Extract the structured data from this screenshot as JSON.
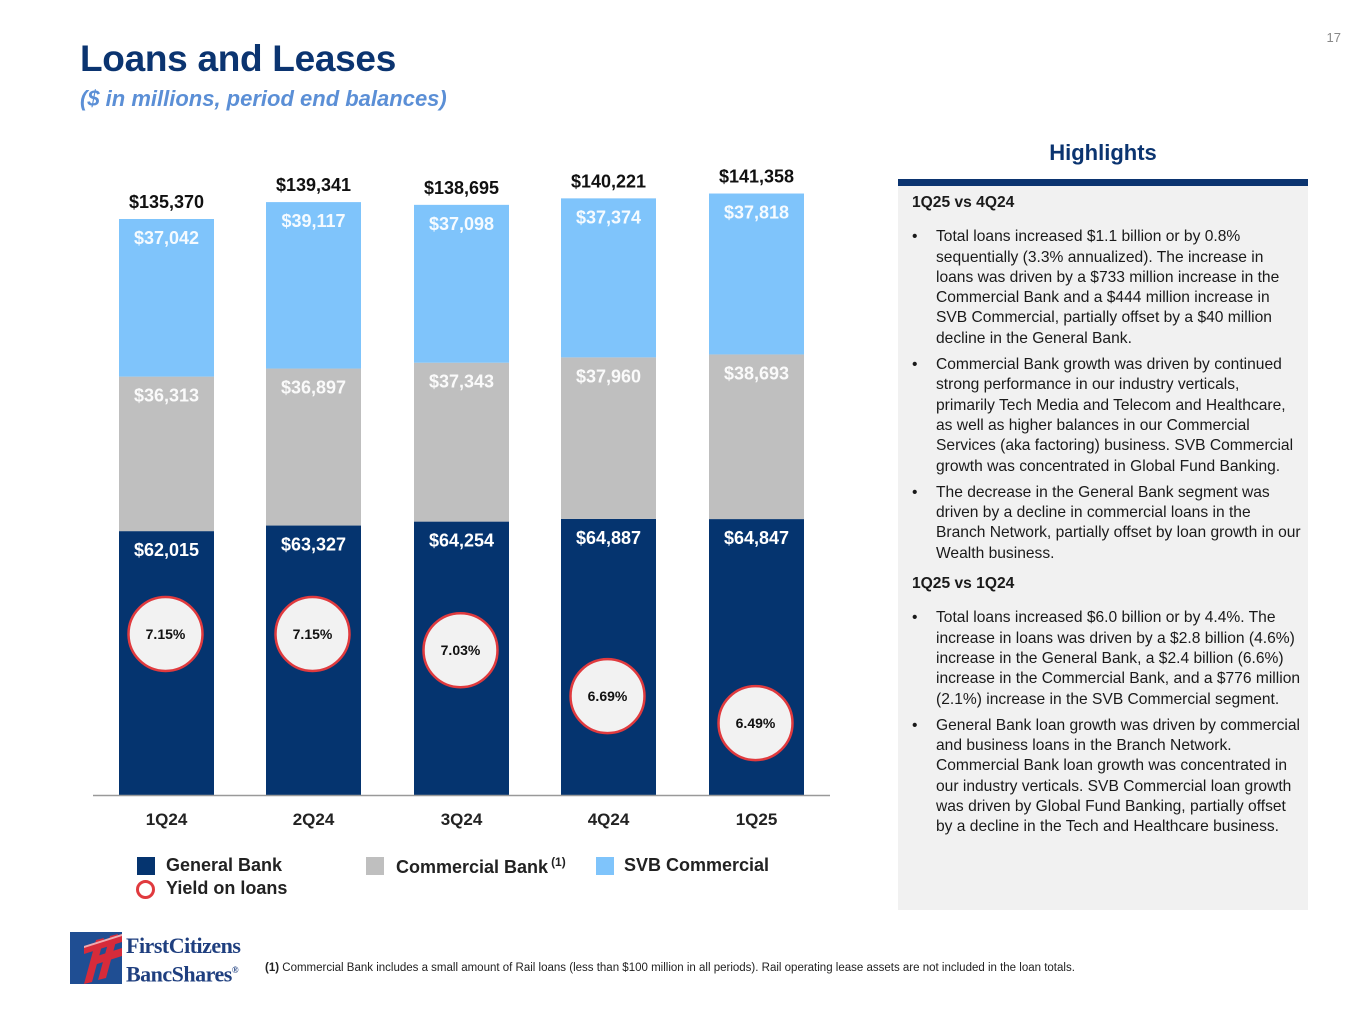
{
  "page": {
    "title": "Loans and Leases",
    "subtitle": "($ in millions, period end balances)",
    "page_number": "17"
  },
  "colors": {
    "general_bank": "#05346f",
    "commercial_bank": "#bfbfbf",
    "svb_commercial": "#7fc4fb",
    "yield_ring": "#e03a3e",
    "title": "#0b3470",
    "subtitle": "#5b8fd6"
  },
  "chart_data": {
    "type": "bar",
    "stacked": true,
    "title": "Loans and Leases",
    "subtitle": "($ in millions, period end balances)",
    "categories": [
      "1Q24",
      "2Q24",
      "3Q24",
      "4Q24",
      "1Q25"
    ],
    "series": [
      {
        "name": "General Bank",
        "values": [
          62015,
          63327,
          64254,
          64887,
          64847
        ],
        "labels": [
          "$62,015",
          "$63,327",
          "$64,254",
          "$64,887",
          "$64,847"
        ]
      },
      {
        "name": "Commercial Bank",
        "footnote_marker": "(1)",
        "values": [
          36313,
          36897,
          37343,
          37960,
          38693
        ],
        "labels": [
          "$36,313",
          "$36,897",
          "$37,343",
          "$37,960",
          "$38,693"
        ]
      },
      {
        "name": "SVB Commercial",
        "values": [
          37042,
          39117,
          37098,
          37374,
          37818
        ],
        "labels": [
          "$37,042",
          "$39,117",
          "$37,098",
          "$37,374",
          "$37,818"
        ]
      }
    ],
    "totals": [
      135370,
      139341,
      138695,
      140221,
      141358
    ],
    "total_labels": [
      "$135,370",
      "$139,341",
      "$138,695",
      "$140,221",
      "$141,358"
    ],
    "yield_on_loans": {
      "name": "Yield on loans",
      "values": [
        7.15,
        7.15,
        7.03,
        6.69,
        6.49
      ],
      "labels": [
        "7.15%",
        "7.15%",
        "7.03%",
        "6.69%",
        "6.49%"
      ]
    },
    "xlabel": "",
    "ylabel": "",
    "ylim": [
      0,
      145000
    ],
    "grid": false,
    "legend_position": "bottom"
  },
  "legend": {
    "general_bank": "General Bank",
    "commercial_bank": "Commercial Bank",
    "commercial_bank_marker": "(1)",
    "svb_commercial": "SVB Commercial",
    "yield": "Yield on loans"
  },
  "highlights": {
    "title": "Highlights",
    "sections": [
      {
        "heading": "1Q25 vs 4Q24",
        "bullets": [
          "Total loans increased $1.1 billion or by 0.8% sequentially (3.3% annualized). The increase in loans was driven by a $733 million increase in the Commercial Bank and a $444 million increase in SVB Commercial, partially offset by a $40 million decline in the General Bank.",
          "Commercial Bank growth was driven by continued strong performance in our industry verticals, primarily Tech Media and Telecom and Healthcare, as well as higher balances in our Commercial Services (aka factoring) business. SVB Commercial growth was concentrated in Global Fund Banking.",
          "The decrease in the General Bank segment was driven by a decline in commercial loans in the Branch Network, partially offset by loan growth in our Wealth business."
        ]
      },
      {
        "heading": "1Q25 vs 1Q24",
        "bullets": [
          "Total loans increased $6.0 billion or by 4.4%. The increase in loans was driven by a $2.8 billion (4.6%) increase in the General Bank, a $2.4 billion (6.6%) increase in the Commercial Bank, and a $776 million (2.1%) increase in the SVB Commercial segment.",
          "General Bank loan growth was driven by commercial and business loans in the Branch Network. Commercial Bank loan growth was concentrated in our industry verticals. SVB Commercial loan growth was driven by Global Fund Banking, partially offset by a decline in the Tech and Healthcare business."
        ]
      }
    ]
  },
  "footnote": {
    "marker": "(1)",
    "text": " Commercial Bank includes a small amount of Rail loans (less than $100 million in all periods).  Rail operating lease assets are not included in the loan totals."
  },
  "logo": {
    "line1": "FirstCitizens",
    "line2": "BancShares",
    "mark": "®"
  }
}
